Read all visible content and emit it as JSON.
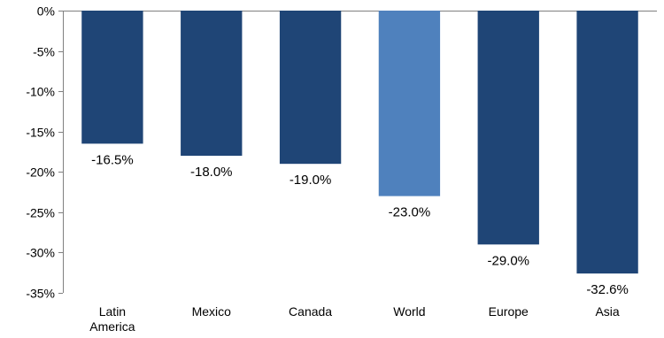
{
  "chart_data": {
    "type": "bar",
    "categories": [
      [
        "Latin",
        "America"
      ],
      [
        "Mexico"
      ],
      [
        "Canada"
      ],
      [
        "World"
      ],
      [
        "Europe"
      ],
      [
        "Asia"
      ]
    ],
    "values": [
      -16.5,
      -18.0,
      -19.0,
      -23.0,
      -29.0,
      -32.6
    ],
    "data_labels": [
      "-16.5%",
      "-18.0%",
      "-19.0%",
      "-23.0%",
      "-29.0%",
      "-32.6%"
    ],
    "y_ticks": [
      0,
      -5,
      -10,
      -15,
      -20,
      -25,
      -30,
      -35
    ],
    "y_tick_labels": [
      "0%",
      "-5%",
      "-10%",
      "-15%",
      "-20%",
      "-25%",
      "-30%",
      "-35%"
    ],
    "ylim": [
      -35,
      0
    ],
    "title": "",
    "xlabel": "",
    "ylabel": "",
    "grid": false,
    "legend": "none",
    "colors": {
      "bar": "#1f4576",
      "highlight": "#4f81bd",
      "axis": "#808080",
      "text": "#000000"
    },
    "highlight_index": 3
  }
}
